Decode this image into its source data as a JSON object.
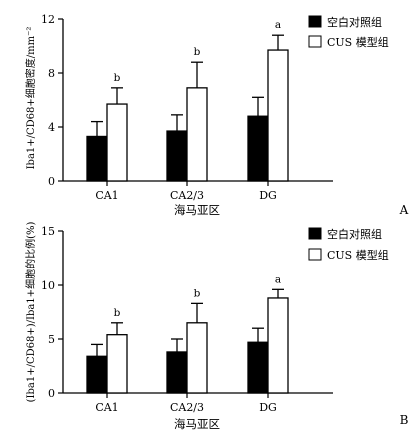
{
  "chart_data": [
    {
      "type": "bar",
      "panel_label": "A",
      "categories": [
        "CA1",
        "CA2/3",
        "DG"
      ],
      "ylabel": "Iba1+/CD68+细胞密度/mm⁻²",
      "xlabel": "海马亚区",
      "ylim": [
        0,
        12
      ],
      "yticks": [
        0,
        4,
        8,
        12
      ],
      "legend": "top-right",
      "series": [
        {
          "name": "空白对照组",
          "color": "#000000",
          "values": [
            3.3,
            3.7,
            4.8
          ],
          "errors": [
            1.1,
            1.2,
            1.4
          ]
        },
        {
          "name": "CUS 模型组",
          "color": "#ffffff",
          "values": [
            5.7,
            6.9,
            9.7
          ],
          "errors": [
            1.2,
            1.9,
            1.1
          ]
        }
      ],
      "annotations": [
        {
          "series": 1,
          "category": 0,
          "text": "b"
        },
        {
          "series": 1,
          "category": 1,
          "text": "b"
        },
        {
          "series": 1,
          "category": 2,
          "text": "a"
        }
      ]
    },
    {
      "type": "bar",
      "panel_label": "B",
      "categories": [
        "CA1",
        "CA2/3",
        "DG"
      ],
      "ylabel": "(Iba1+/CD68+)/Iba1+细胞的比例(%)",
      "xlabel": "海马亚区",
      "ylim": [
        0,
        15
      ],
      "yticks": [
        0,
        5,
        10,
        15
      ],
      "legend": "top-right",
      "series": [
        {
          "name": "空白对照组",
          "color": "#000000",
          "values": [
            3.4,
            3.8,
            4.7
          ],
          "errors": [
            1.1,
            1.2,
            1.3
          ]
        },
        {
          "name": "CUS 模型组",
          "color": "#ffffff",
          "values": [
            5.4,
            6.5,
            8.8
          ],
          "errors": [
            1.1,
            1.8,
            0.8
          ]
        }
      ],
      "annotations": [
        {
          "series": 1,
          "category": 0,
          "text": "b"
        },
        {
          "series": 1,
          "category": 1,
          "text": "b"
        },
        {
          "series": 1,
          "category": 2,
          "text": "a"
        }
      ]
    }
  ]
}
